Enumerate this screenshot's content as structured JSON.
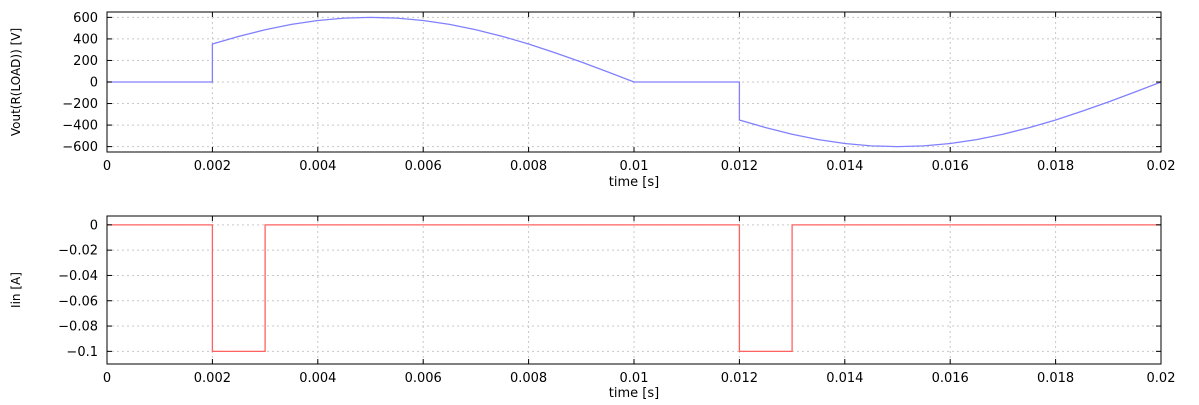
{
  "chart_data": [
    {
      "type": "line",
      "xlabel": "time [s]",
      "ylabel": "Vout(R(LOAD)) [V]",
      "xlim": [
        0,
        0.02
      ],
      "ylim": [
        -650,
        650
      ],
      "grid": true,
      "color": "#8080ff",
      "xticks": [
        0,
        0.002,
        0.004,
        0.006,
        0.008,
        0.01,
        0.012,
        0.014,
        0.016,
        0.018,
        0.02
      ],
      "xtick_labels": [
        "0",
        "0.002",
        "0.004",
        "0.006",
        "0.008",
        "0.01",
        "0.012",
        "0.014",
        "0.016",
        "0.018",
        "0.02"
      ],
      "yticks": [
        600,
        400,
        200,
        0,
        -200,
        -400,
        -600
      ],
      "ytick_labels": [
        "600",
        "400",
        "200",
        "0",
        "−200",
        "−400",
        "−600"
      ],
      "series": [
        {
          "x": [
            0,
            0.002,
            0.002,
            0.0025,
            0.003,
            0.0035,
            0.004,
            0.0045,
            0.005,
            0.0055,
            0.006,
            0.0065,
            0.007,
            0.0075,
            0.008,
            0.0085,
            0.009,
            0.0095,
            0.01,
            0.012,
            0.012,
            0.0125,
            0.013,
            0.0135,
            0.014,
            0.0145,
            0.015,
            0.0155,
            0.016,
            0.0165,
            0.017,
            0.0175,
            0.018,
            0.0185,
            0.019,
            0.0195,
            0.02
          ],
          "y": [
            0,
            0,
            353,
            424,
            485,
            535,
            571,
            593,
            600,
            593,
            571,
            535,
            485,
            424,
            353,
            272,
            186,
            94,
            0,
            0,
            -353,
            -424,
            -485,
            -535,
            -571,
            -593,
            -600,
            -593,
            -571,
            -535,
            -485,
            -424,
            -353,
            -272,
            -186,
            -94,
            0
          ]
        }
      ]
    },
    {
      "type": "line",
      "xlabel": "time [s]",
      "ylabel": "Iin [A]",
      "xlim": [
        0,
        0.02
      ],
      "ylim": [
        -0.11,
        0.007
      ],
      "grid": true,
      "color": "#ff6060",
      "xticks": [
        0,
        0.002,
        0.004,
        0.006,
        0.008,
        0.01,
        0.012,
        0.014,
        0.016,
        0.018,
        0.02
      ],
      "xtick_labels": [
        "0",
        "0.002",
        "0.004",
        "0.006",
        "0.008",
        "0.01",
        "0.012",
        "0.014",
        "0.016",
        "0.018",
        "0.02"
      ],
      "yticks": [
        0,
        -0.02,
        -0.04,
        -0.06,
        -0.08,
        -0.1
      ],
      "ytick_labels": [
        "0",
        "−0.02",
        "−0.04",
        "−0.06",
        "−0.08",
        "−0.1"
      ],
      "series": [
        {
          "x": [
            0,
            0.002,
            0.002,
            0.003,
            0.003,
            0.012,
            0.012,
            0.013,
            0.013,
            0.02
          ],
          "y": [
            0,
            0,
            -0.1,
            -0.1,
            0,
            0,
            -0.1,
            -0.1,
            0,
            0
          ]
        }
      ]
    }
  ]
}
